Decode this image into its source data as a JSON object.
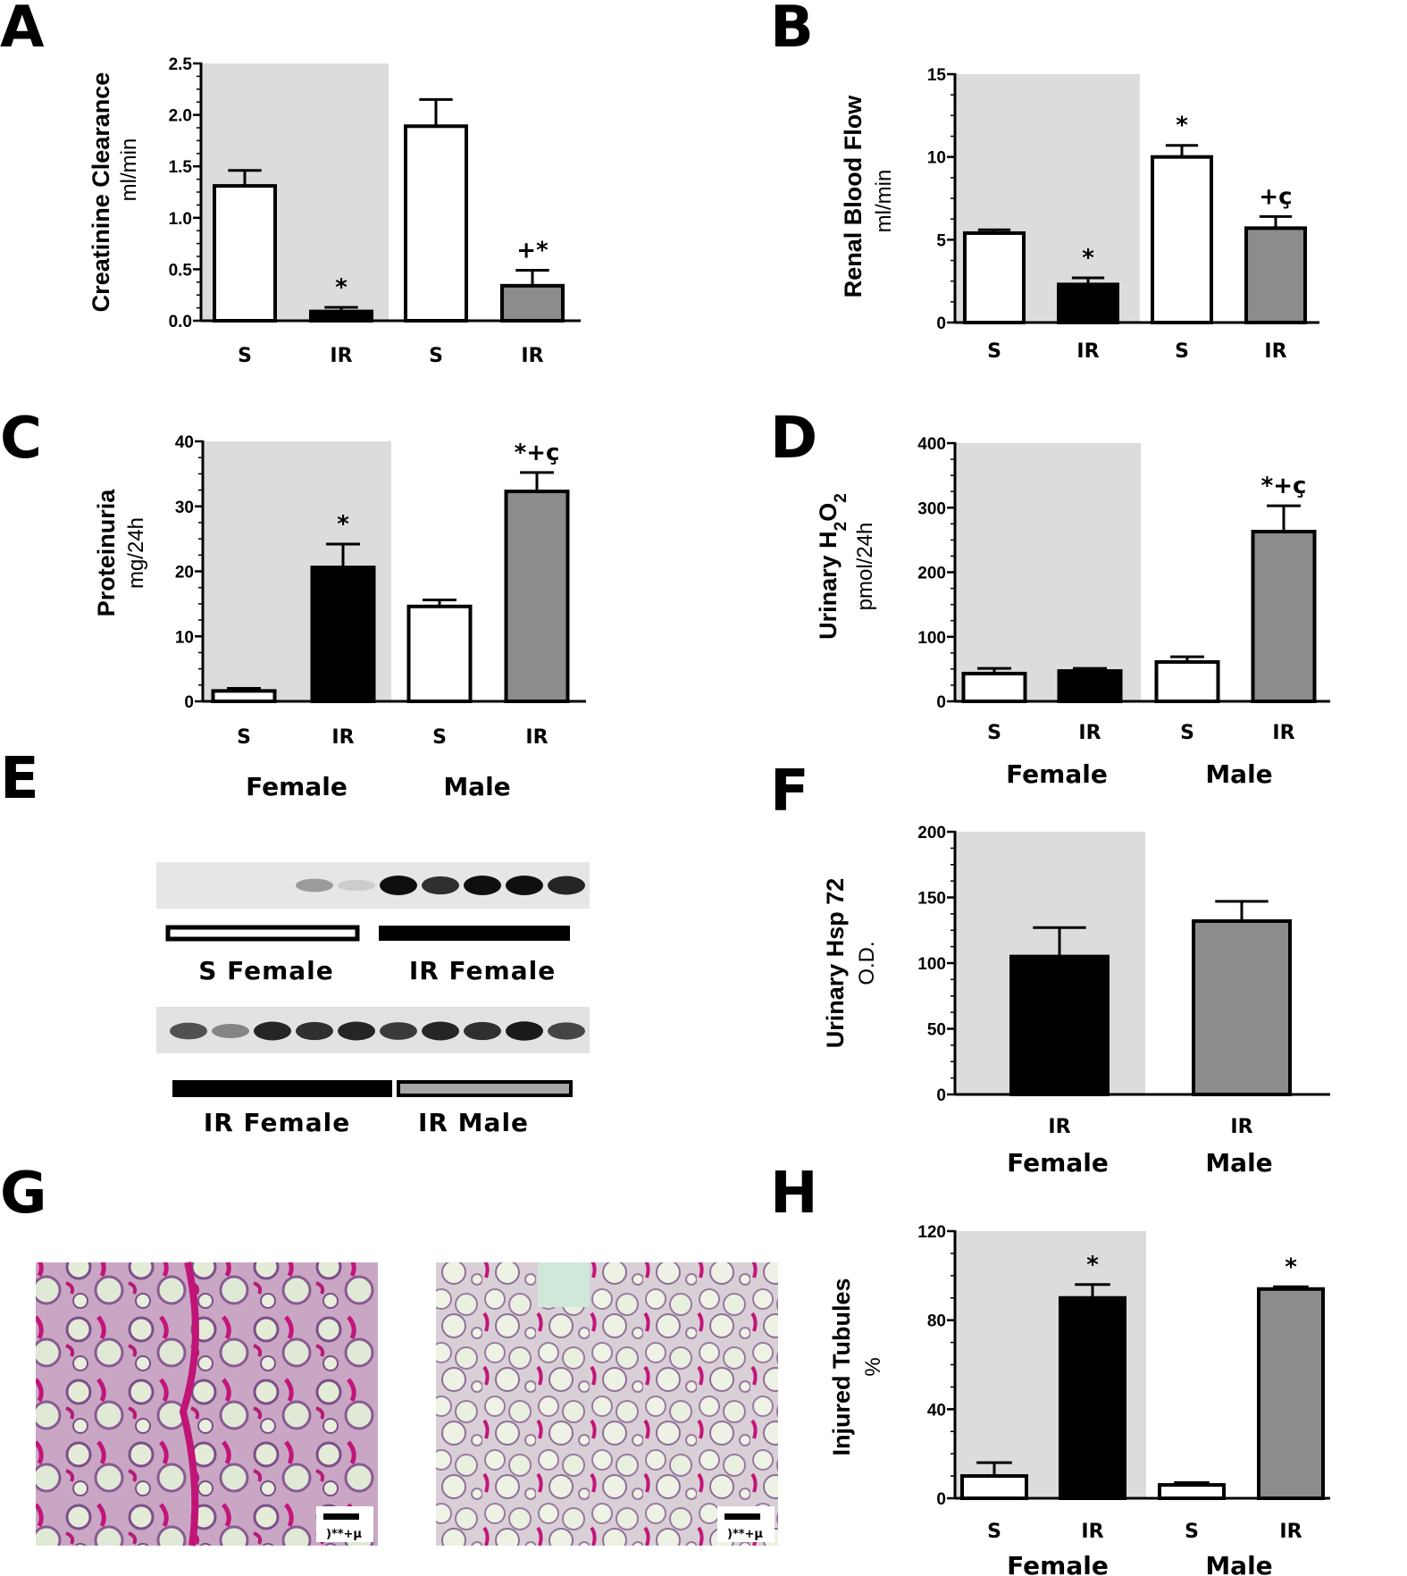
{
  "chart_data": [
    {
      "id": "A",
      "type": "bar",
      "panel_label": "A",
      "ylabel": "Creatinine Clearance",
      "yunit": "ml/min",
      "ylim": [
        0,
        2.5
      ],
      "yticks": [
        "0.0",
        "0.5",
        "1.0",
        "1.5",
        "2.0",
        "2.5"
      ],
      "categories": [
        "S",
        "IR",
        "S",
        "IR"
      ],
      "values": [
        1.31,
        0.09,
        1.89,
        0.34
      ],
      "errors": [
        0.15,
        0.04,
        0.26,
        0.15
      ],
      "annotations": [
        "",
        "*",
        "",
        "+*"
      ],
      "colors": [
        "#ffffff",
        "#000000",
        "#ffffff",
        "#8c8c8c"
      ],
      "female_shaded": true
    },
    {
      "id": "B",
      "type": "bar",
      "panel_label": "B",
      "ylabel": "Renal Blood Flow",
      "yunit": "ml/min",
      "ylim": [
        0,
        15
      ],
      "yticks": [
        "0",
        "5",
        "10",
        "15"
      ],
      "categories": [
        "S",
        "IR",
        "S",
        "IR"
      ],
      "values": [
        5.4,
        2.3,
        10.0,
        5.7
      ],
      "errors": [
        0.2,
        0.4,
        0.7,
        0.7
      ],
      "annotations": [
        "",
        "*",
        "*",
        "+ç"
      ],
      "colors": [
        "#ffffff",
        "#000000",
        "#ffffff",
        "#8c8c8c"
      ],
      "female_shaded": true
    },
    {
      "id": "C",
      "type": "bar",
      "panel_label": "C",
      "ylabel": "Proteinuria",
      "yunit": "mg/24h",
      "ylim": [
        0,
        40
      ],
      "yticks": [
        "0",
        "10",
        "20",
        "30",
        "40"
      ],
      "categories": [
        "S",
        "IR",
        "S",
        "IR"
      ],
      "values": [
        1.6,
        20.6,
        14.6,
        32.3
      ],
      "errors": [
        0.4,
        3.6,
        1.0,
        2.9
      ],
      "annotations": [
        "",
        "*",
        "",
        "*+ç"
      ],
      "colors": [
        "#ffffff",
        "#000000",
        "#ffffff",
        "#8c8c8c"
      ],
      "female_shaded": true,
      "groups": [
        "Female",
        "Male"
      ]
    },
    {
      "id": "D",
      "type": "bar",
      "panel_label": "D",
      "ylabel": "Urinary H",
      "ylabel_sub1": "2",
      "ylabel_mid": "O",
      "ylabel_sub2": "2",
      "yunit": "pmol/24h",
      "ylim": [
        0,
        400
      ],
      "yticks": [
        "0",
        "100",
        "200",
        "300",
        "400"
      ],
      "categories": [
        "S",
        "IR",
        "S",
        "IR"
      ],
      "values": [
        43,
        47,
        61,
        263
      ],
      "errors": [
        8,
        4,
        8,
        40
      ],
      "annotations": [
        "",
        "",
        "",
        "*+ç"
      ],
      "colors": [
        "#ffffff",
        "#000000",
        "#ffffff",
        "#8c8c8c"
      ],
      "female_shaded": true,
      "groups": [
        "Female",
        "Male"
      ]
    },
    {
      "id": "F",
      "type": "bar",
      "panel_label": "F",
      "ylabel": "Urinary Hsp 72",
      "yunit": "O.D.",
      "ylim": [
        0,
        200
      ],
      "yticks": [
        "0",
        "50",
        "100",
        "150",
        "200"
      ],
      "categories": [
        "IR",
        "IR"
      ],
      "values": [
        105,
        132
      ],
      "errors": [
        22,
        15
      ],
      "annotations": [
        "",
        ""
      ],
      "colors": [
        "#000000",
        "#8c8c8c"
      ],
      "female_shaded": true,
      "groups": [
        "Female",
        "Male"
      ]
    },
    {
      "id": "H",
      "type": "bar",
      "panel_label": "H",
      "ylabel": "Injured Tubules",
      "yunit": "%",
      "ylim": [
        0,
        120
      ],
      "yticks": [
        "0",
        "40",
        "80",
        "120"
      ],
      "categories": [
        "S",
        "IR",
        "S",
        "IR"
      ],
      "values": [
        10,
        90,
        6,
        94
      ],
      "errors": [
        6,
        6,
        1,
        1
      ],
      "annotations": [
        "",
        "*",
        "",
        "*"
      ],
      "colors": [
        "#ffffff",
        "#000000",
        "#ffffff",
        "#8c8c8c"
      ],
      "female_shaded": true,
      "groups": [
        "Female",
        "Male"
      ]
    }
  ],
  "panel_E": {
    "panel_label": "E",
    "group_female": "Female",
    "group_male": "Male",
    "blot1_labels": [
      "S Female",
      "IR Female"
    ],
    "blot2_labels": [
      "IR Female",
      "IR Male"
    ],
    "blot1_band_intensity": [
      0.0,
      0.0,
      0.0,
      0.35,
      0.12,
      1.0,
      0.85,
      1.0,
      1.0,
      0.9
    ],
    "blot2_band_intensity": [
      0.7,
      0.45,
      0.9,
      0.85,
      0.9,
      0.8,
      0.9,
      0.85,
      0.95,
      0.75
    ]
  },
  "panel_G": {
    "panel_label": "G",
    "images": [
      "female kidney histology",
      "male kidney histology"
    ],
    "scale_text": ")**+µ"
  }
}
